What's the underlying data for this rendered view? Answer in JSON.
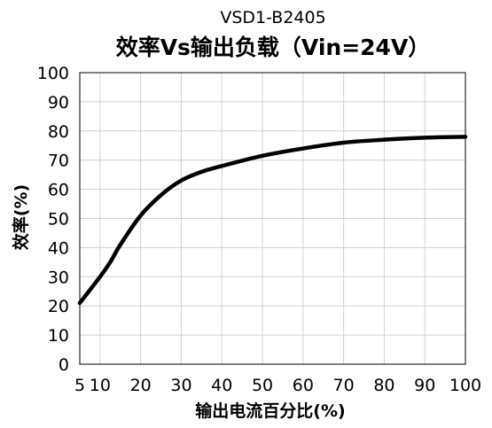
{
  "chart_data": {
    "type": "line",
    "title_line1": "VSD1-B2405",
    "title": "效率Vs输出负载（Vin=24V）",
    "xlabel": "输出电流百分比(%)",
    "ylabel": "效率(%)",
    "x_ticks": [
      "5",
      "10",
      "20",
      "30",
      "40",
      "50",
      "60",
      "70",
      "80",
      "90",
      "100"
    ],
    "y_ticks": [
      "0",
      "10",
      "20",
      "30",
      "40",
      "50",
      "60",
      "70",
      "80",
      "90",
      "100"
    ],
    "xlim": [
      5,
      100
    ],
    "ylim": [
      0,
      100
    ],
    "grid": true,
    "series": [
      {
        "color": "#000000",
        "x": [
          5,
          10,
          12.5,
          15,
          20,
          25,
          30,
          35,
          40,
          50,
          60,
          70,
          80,
          90,
          100
        ],
        "y": [
          21,
          30,
          35,
          41,
          51,
          58,
          63,
          66,
          68,
          71.5,
          74,
          76,
          77,
          77.7,
          78
        ]
      }
    ]
  }
}
